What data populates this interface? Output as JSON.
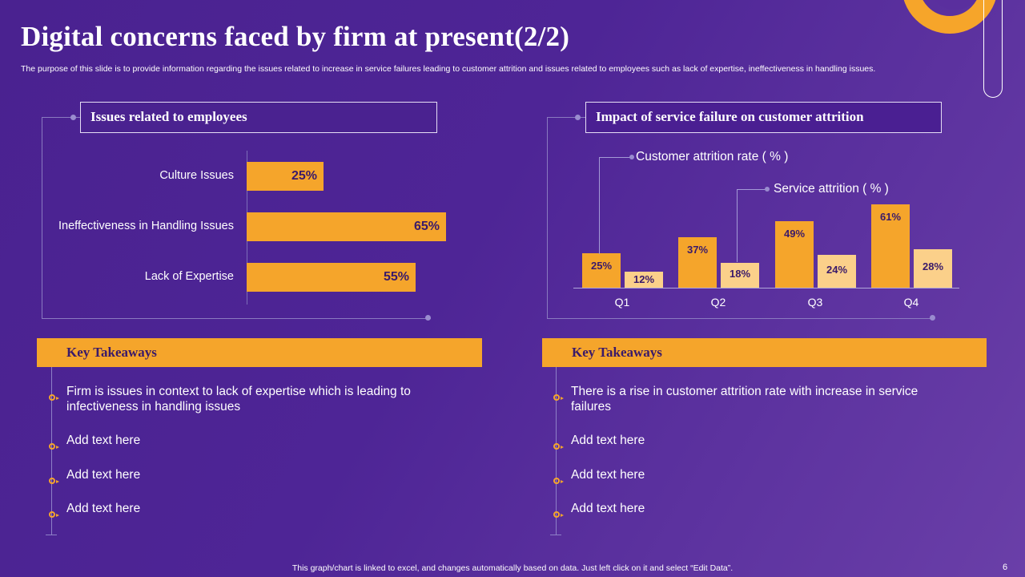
{
  "header": {
    "title": "Digital concerns faced by firm at present(2/2)",
    "subtitle": "The purpose of this slide is to provide information regarding the issues related to increase in service failures leading to customer attrition and issues related to employees such as lack of expertise, ineffectiveness in handling issues."
  },
  "left_panel": {
    "heading": "Issues related to employees",
    "takeaways_title": "Key Takeaways",
    "takeaways": [
      "Firm is issues in context to lack of expertise which is leading to infectiveness in handling issues",
      "Add text here",
      "Add text here",
      "Add text here"
    ]
  },
  "right_panel": {
    "heading": "Impact of service failure on customer attrition",
    "takeaways_title": "Key Takeaways",
    "takeaways": [
      "There is a rise in customer attrition rate with increase in service failures",
      "Add text here",
      "Add text here",
      "Add text here"
    ]
  },
  "chart_data": [
    {
      "type": "bar",
      "orientation": "horizontal",
      "title": "Issues related to employees",
      "categories": [
        "Culture Issues",
        "Ineffectiveness in Handling Issues",
        "Lack of Expertise"
      ],
      "values": [
        25,
        65,
        55
      ],
      "value_labels": [
        "25%",
        "65%",
        "55%"
      ],
      "xlim": [
        0,
        100
      ]
    },
    {
      "type": "bar",
      "orientation": "vertical",
      "title": "Impact of service failure on customer attrition",
      "categories": [
        "Q1",
        "Q2",
        "Q3",
        "Q4"
      ],
      "series": [
        {
          "name": "Customer attrition rate ( % )",
          "values": [
            25,
            37,
            49,
            61
          ],
          "labels": [
            "25%",
            "37%",
            "49%",
            "61%"
          ],
          "color": "#f5a52b"
        },
        {
          "name": "Service attrition ( % )",
          "values": [
            12,
            18,
            24,
            28
          ],
          "labels": [
            "12%",
            "18%",
            "24%",
            "28%"
          ],
          "color": "#fbd08a"
        }
      ],
      "ylim": [
        0,
        65
      ]
    }
  ],
  "footer": {
    "note": "This graph/chart is linked to excel, and changes automatically based on data. Just left click on it and select “Edit Data”.",
    "page_number": "6"
  }
}
